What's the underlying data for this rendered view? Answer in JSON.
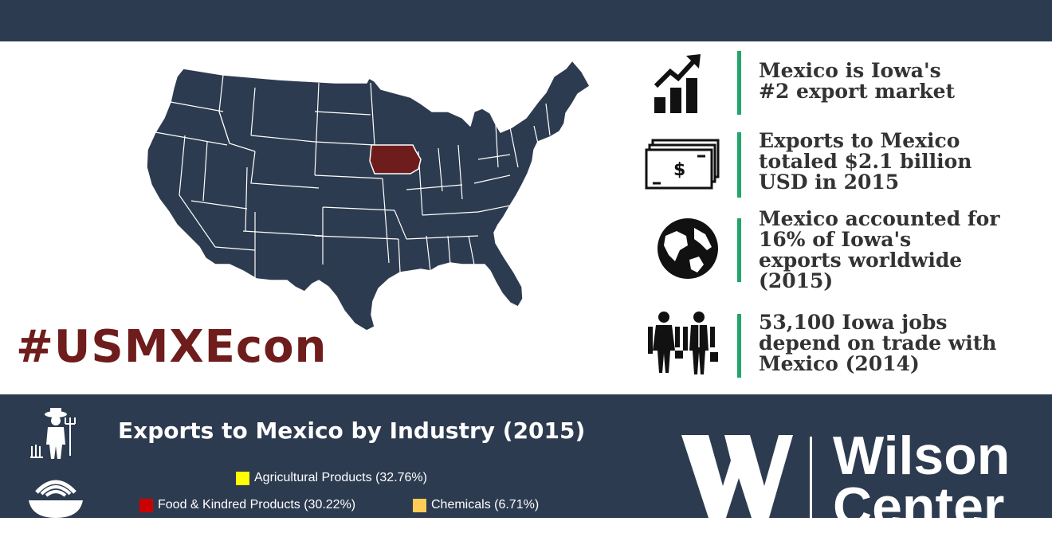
{
  "hashtag": "#USMXEcon",
  "highlighted_state": "Iowa",
  "colors": {
    "navy": "#2d3b50",
    "highlight": "#6e1c1c",
    "divider_green": "#23a56b",
    "text_dark": "#333333"
  },
  "facts": [
    {
      "icon": "chart-growth-icon",
      "text": "Mexico is Iowa's\n#2 export market"
    },
    {
      "icon": "money-stack-icon",
      "text": "Exports to Mexico\ntotaled $2.1 billion\nUSD in 2015"
    },
    {
      "icon": "globe-icon",
      "text": "Mexico accounted for\n16% of Iowa's\nexports worldwide\n(2015)"
    },
    {
      "icon": "workers-icon",
      "text": "53,100 Iowa jobs\ndepend on trade with\nMexico (2014)"
    }
  ],
  "industry": {
    "title": "Exports to Mexico by Industry (2015)",
    "legend": [
      {
        "label": "Agricultural Products (32.76%)",
        "color": "#ffff00"
      },
      {
        "label": "Food & Kindred Products (30.22%)",
        "color": "#cc0000"
      },
      {
        "label": "Chemicals (6.71%)",
        "color": "#ffcc55"
      }
    ]
  },
  "logo": {
    "text": "Wilson\nCenter"
  }
}
